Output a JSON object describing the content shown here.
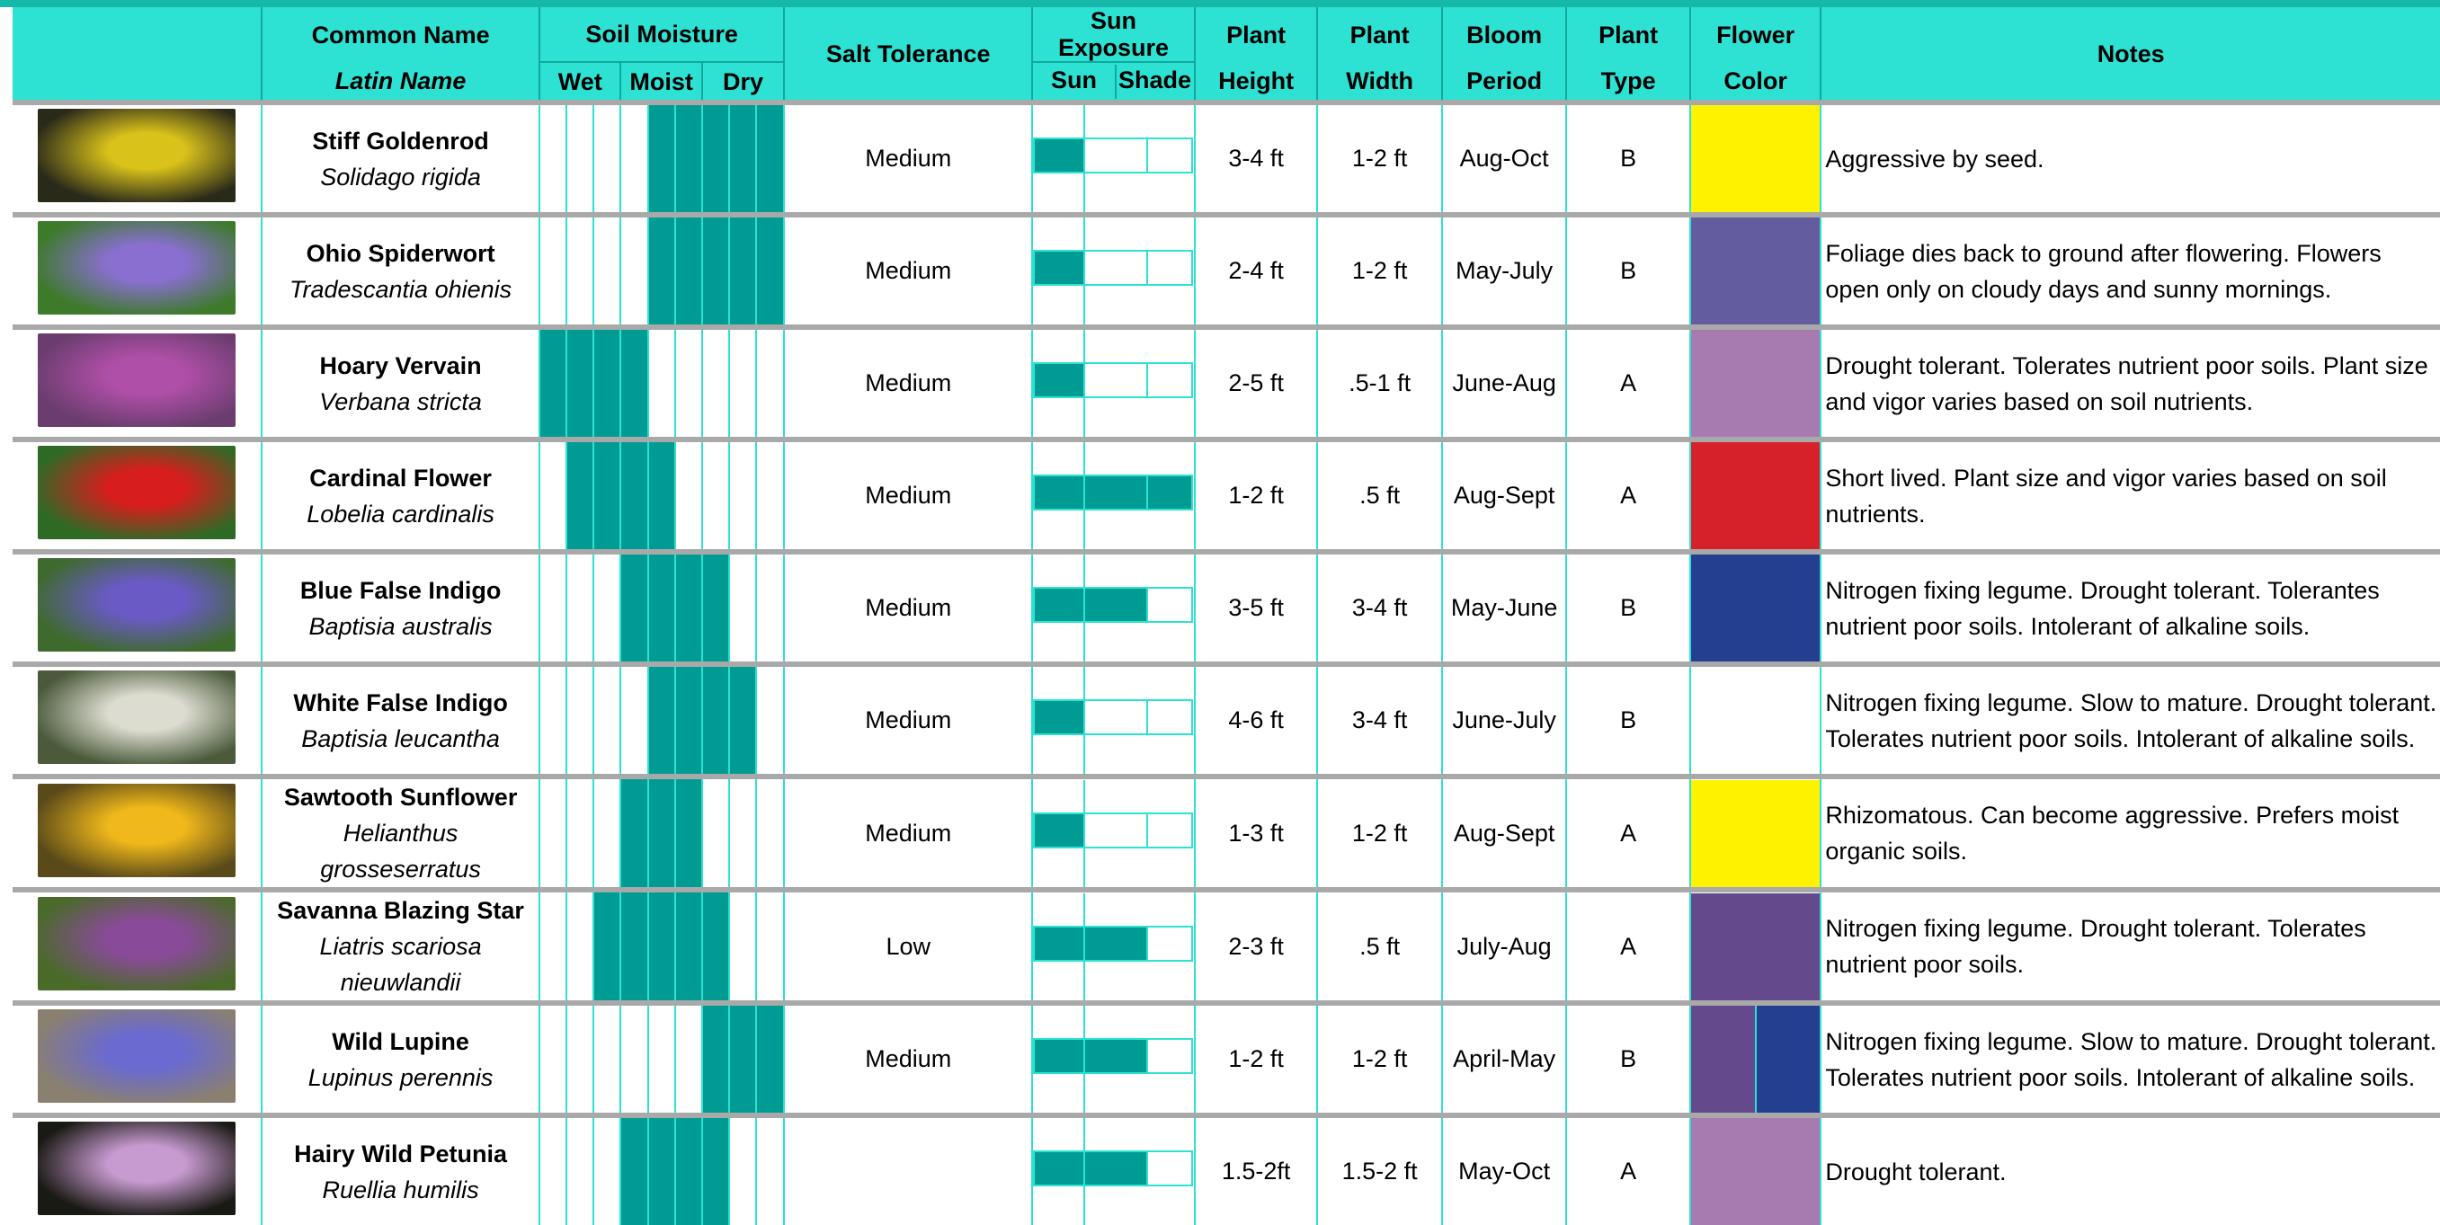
{
  "header": {
    "common_name": "Common Name",
    "latin_name": "Latin Name",
    "soil_moisture": "Soil Moisture",
    "wet": "Wet",
    "moist": "Moist",
    "dry": "Dry",
    "salt_tolerance": "Salt Tolerance",
    "sun_exposure": "Sun Exposure",
    "sun": "Sun",
    "shade": "Shade",
    "plant_height_1": "Plant",
    "plant_height_2": "Height",
    "plant_width_1": "Plant",
    "plant_width_2": "Width",
    "bloom_period_1": "Bloom",
    "bloom_period_2": "Period",
    "plant_type_1": "Plant",
    "plant_type_2": "Type",
    "flower_color_1": "Flower",
    "flower_color_2": "Color",
    "notes": "Notes"
  },
  "colors": {
    "header_bg": "#2de2d3",
    "fill": "#009c94",
    "grid": "#2de2d3",
    "separator": "#a9a9a9"
  },
  "plants": [
    {
      "common": "Stiff Goldenrod",
      "latin": "Solidago rigida",
      "moisture": [
        0,
        0,
        0,
        0,
        1,
        1,
        1,
        1,
        1
      ],
      "salt": "Medium",
      "sun": [
        1,
        0,
        0
      ],
      "height": "3-4 ft",
      "width": "1-2 ft",
      "bloom": "Aug-Oct",
      "type": "B",
      "flower_colors": [
        "#fff200"
      ],
      "notes": "Aggressive by seed.",
      "photo": [
        "#2a2a1a",
        "#d9c21a"
      ]
    },
    {
      "common": "Ohio Spiderwort",
      "latin": "Tradescantia ohienis",
      "moisture": [
        0,
        0,
        0,
        0,
        1,
        1,
        1,
        1,
        1
      ],
      "salt": "Medium",
      "sun": [
        1,
        0,
        0
      ],
      "height": "2-4 ft",
      "width": "1-2 ft",
      "bloom": "May-July",
      "type": "B",
      "flower_colors": [
        "#635c9e"
      ],
      "notes": "Foliage dies back to ground after flowering. Flowers open only on cloudy days and sunny mornings.",
      "photo": [
        "#3d7a2a",
        "#8a6fd1"
      ]
    },
    {
      "common": "Hoary Vervain",
      "latin": "Verbana stricta",
      "moisture": [
        1,
        1,
        1,
        1,
        0,
        0,
        0,
        0,
        0
      ],
      "salt": "Medium",
      "sun": [
        1,
        0,
        0
      ],
      "height": "2-5 ft",
      "width": ".5-1 ft",
      "bloom": "June-Aug",
      "type": "A",
      "flower_colors": [
        "#a87bb0"
      ],
      "notes": "Drought tolerant. Tolerates nutrient poor soils. Plant size and vigor varies based on soil nutrients.",
      "photo": [
        "#6a3d6e",
        "#b04fa8"
      ]
    },
    {
      "common": "Cardinal Flower",
      "latin": "Lobelia cardinalis",
      "moisture": [
        0,
        1,
        1,
        1,
        1,
        0,
        0,
        0,
        0
      ],
      "salt": "Medium",
      "sun": [
        1,
        1,
        1
      ],
      "height": "1-2 ft",
      "width": ".5 ft",
      "bloom": "Aug-Sept",
      "type": "A",
      "flower_colors": [
        "#d6202a"
      ],
      "notes": "Short lived. Plant size and vigor varies based on soil nutrients.",
      "photo": [
        "#2f6a25",
        "#d81d1d"
      ]
    },
    {
      "common": "Blue False Indigo",
      "latin": "Baptisia australis",
      "moisture": [
        0,
        0,
        0,
        1,
        1,
        1,
        1,
        0,
        0
      ],
      "salt": "Medium",
      "sun": [
        1,
        1,
        0
      ],
      "height": "3-5 ft",
      "width": "3-4 ft",
      "bloom": "May-June",
      "type": "B",
      "flower_colors": [
        "#243f8f"
      ],
      "notes": "Nitrogen fixing legume. Drought tolerant. Tolerantes nutrient poor soils. Intolerant of alkaline soils.",
      "photo": [
        "#3f6a2e",
        "#6a5ac6"
      ]
    },
    {
      "common": "White False Indigo",
      "latin": "Baptisia leucantha",
      "moisture": [
        0,
        0,
        0,
        0,
        1,
        1,
        1,
        1,
        0
      ],
      "salt": "Medium",
      "sun": [
        1,
        0,
        0
      ],
      "height": "4-6 ft",
      "width": "3-4 ft",
      "bloom": "June-July",
      "type": "B",
      "flower_colors": [
        "#ffffff"
      ],
      "notes": "Nitrogen fixing legume. Slow to mature. Drought tolerant. Tolerates nutrient poor soils. Intolerant of alkaline soils.",
      "photo": [
        "#4a5a3a",
        "#dcdcd0"
      ]
    },
    {
      "common": "Sawtooth Sunflower",
      "latin_1": "Helianthus",
      "latin_2": "grosseserratus",
      "moisture": [
        0,
        0,
        0,
        1,
        1,
        1,
        0,
        0,
        0
      ],
      "salt": "Medium",
      "sun": [
        1,
        0,
        0
      ],
      "height": "1-3 ft",
      "width": "1-2 ft",
      "bloom": "Aug-Sept",
      "type": "A",
      "flower_colors": [
        "#fff200"
      ],
      "notes": "Rhizomatous. Can become aggressive. Prefers moist organic soils.",
      "photo": [
        "#5a4a1a",
        "#f0b81a"
      ]
    },
    {
      "common": "Savanna Blazing Star",
      "latin_1": "Liatris scariosa",
      "latin_2": "nieuwlandii",
      "moisture": [
        0,
        0,
        1,
        1,
        1,
        1,
        1,
        0,
        0
      ],
      "salt": "Low",
      "sun": [
        1,
        1,
        0
      ],
      "height": "2-3 ft",
      "width": ".5 ft",
      "bloom": "July-Aug",
      "type": "A",
      "flower_colors": [
        "#644a8c"
      ],
      "notes": "Nitrogen fixing legume. Drought tolerant. Tolerates nutrient poor soils.",
      "photo": [
        "#4a6a2a",
        "#8a4a9a"
      ]
    },
    {
      "common": "Wild Lupine",
      "latin": "Lupinus perennis",
      "moisture": [
        0,
        0,
        0,
        0,
        0,
        0,
        1,
        1,
        1
      ],
      "salt": "Medium",
      "sun": [
        1,
        1,
        0
      ],
      "height": "1-2 ft",
      "width": "1-2 ft",
      "bloom": "April-May",
      "type": "B",
      "flower_colors": [
        "#644a8c",
        "#243f8f"
      ],
      "notes": "Nitrogen fixing legume. Slow to mature. Drought tolerant. Tolerates nutrient poor soils. Intolerant of alkaline soils.",
      "photo": [
        "#8a8070",
        "#6a6ad0"
      ]
    },
    {
      "common": "Hairy Wild Petunia",
      "latin": "Ruellia humilis",
      "moisture": [
        0,
        0,
        0,
        1,
        1,
        1,
        1,
        0,
        0
      ],
      "salt": "",
      "sun": [
        1,
        1,
        0
      ],
      "height": "1.5-2ft",
      "width": "1.5-2 ft",
      "bloom": "May-Oct",
      "type": "A",
      "flower_colors": [
        "#a87bb0"
      ],
      "notes": "Drought tolerant.",
      "photo": [
        "#1a1a14",
        "#c79ad0"
      ]
    }
  ]
}
